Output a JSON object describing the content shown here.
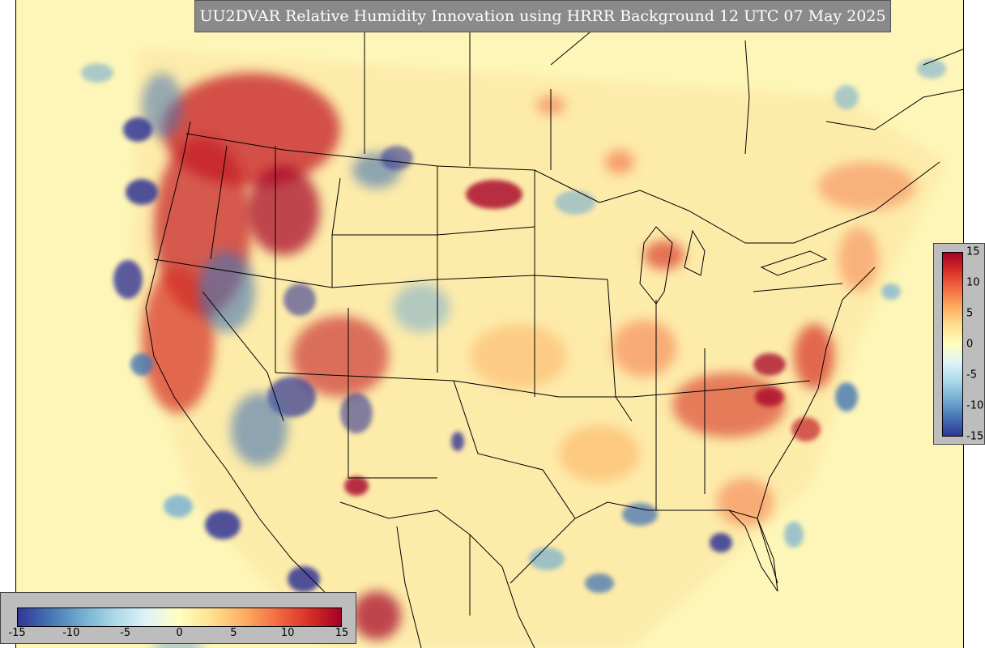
{
  "title": "UU2DVAR Relative Humidity Innovation using HRRR Background 12 UTC 07 May 2025",
  "colorbar": {
    "vertical_ticks": [
      "15",
      "10",
      "5",
      "0",
      "-5",
      "-10",
      "-15"
    ],
    "horizontal_ticks": [
      "-15",
      "-10",
      "-5",
      "0",
      "5",
      "10",
      "15"
    ],
    "range": [
      -15,
      15
    ],
    "colors": [
      "#313695",
      "#4575b4",
      "#74add1",
      "#abd9e9",
      "#e0f3f8",
      "#ffffbf",
      "#fee090",
      "#fdae61",
      "#f46d43",
      "#d73027",
      "#a50026"
    ]
  },
  "map": {
    "background_color": "#fdf6b8",
    "boundary_color": "#000000"
  }
}
